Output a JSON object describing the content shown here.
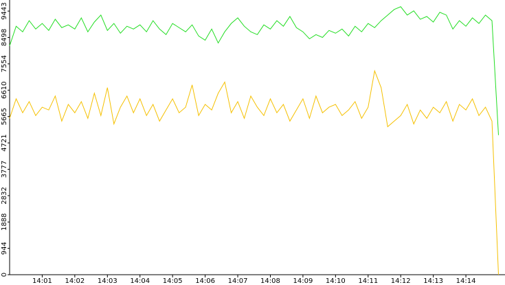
{
  "chart_data": {
    "type": "line",
    "xlim": [
      840,
      855.2
    ],
    "ylim": [
      0,
      9840
    ],
    "xticks": [
      {
        "value": 841,
        "label": "14:01"
      },
      {
        "value": 842,
        "label": "14:02"
      },
      {
        "value": 843,
        "label": "14:03"
      },
      {
        "value": 844,
        "label": "14:04"
      },
      {
        "value": 845,
        "label": "14:05"
      },
      {
        "value": 846,
        "label": "14:06"
      },
      {
        "value": 847,
        "label": "14:07"
      },
      {
        "value": 848,
        "label": "14:08"
      },
      {
        "value": 849,
        "label": "14:09"
      },
      {
        "value": 850,
        "label": "14:10"
      },
      {
        "value": 851,
        "label": "14:11"
      },
      {
        "value": 852,
        "label": "14:12"
      },
      {
        "value": 853,
        "label": "14:13"
      },
      {
        "value": 854,
        "label": "14:14"
      }
    ],
    "yticks": [
      0,
      944,
      1888,
      2832,
      3777,
      4721,
      5665,
      6610,
      7554,
      8498,
      9443
    ],
    "x": [
      840.0,
      840.2,
      840.4,
      840.6,
      840.8,
      841.0,
      841.2,
      841.4,
      841.6,
      841.8,
      842.0,
      842.2,
      842.4,
      842.6,
      842.8,
      843.0,
      843.2,
      843.4,
      843.6,
      843.8,
      844.0,
      844.2,
      844.4,
      844.6,
      844.8,
      845.0,
      845.2,
      845.4,
      845.6,
      845.8,
      846.0,
      846.2,
      846.4,
      846.6,
      846.8,
      847.0,
      847.2,
      847.4,
      847.6,
      847.8,
      848.0,
      848.2,
      848.4,
      848.6,
      848.8,
      849.0,
      849.2,
      849.4,
      849.6,
      849.8,
      850.0,
      850.2,
      850.4,
      850.6,
      850.8,
      851.0,
      851.2,
      851.4,
      851.6,
      851.8,
      852.0,
      852.2,
      852.4,
      852.6,
      852.8,
      853.0,
      853.2,
      853.4,
      853.6,
      853.8,
      854.0,
      854.2,
      854.4,
      854.6,
      854.8,
      855.0
    ],
    "series": [
      {
        "color": "#22dd22",
        "values": [
          8200,
          8900,
          8700,
          9100,
          8800,
          9000,
          8750,
          9150,
          8850,
          8950,
          8800,
          9200,
          8700,
          9050,
          9300,
          8750,
          9000,
          8650,
          8900,
          8800,
          8950,
          8700,
          9100,
          8800,
          8600,
          9000,
          8850,
          8700,
          8950,
          8550,
          8400,
          8800,
          8300,
          8700,
          9000,
          9200,
          8900,
          8700,
          8600,
          8950,
          8800,
          9100,
          8900,
          9250,
          8850,
          8700,
          8450,
          8600,
          8500,
          8750,
          8650,
          8800,
          8550,
          8900,
          8700,
          9000,
          8850,
          9100,
          9300,
          9500,
          9600,
          9300,
          9450,
          9150,
          9250,
          9050,
          9400,
          9300,
          8800,
          9100,
          8900,
          9200,
          9000,
          9300,
          9100,
          5000
        ]
      },
      {
        "color": "#f5c000",
        "values": [
          5600,
          6300,
          5800,
          6200,
          5700,
          6000,
          5900,
          6400,
          5500,
          6100,
          5800,
          6200,
          5600,
          6500,
          5700,
          6700,
          5400,
          6000,
          6400,
          5800,
          6300,
          5700,
          6100,
          5500,
          5900,
          6300,
          5800,
          6000,
          6800,
          5700,
          6100,
          5900,
          6500,
          6900,
          5800,
          6200,
          5600,
          6400,
          6000,
          5700,
          6300,
          5800,
          6100,
          5500,
          5900,
          6300,
          5600,
          6400,
          5800,
          6000,
          6100,
          5700,
          5900,
          6200,
          5600,
          6000,
          7300,
          6700,
          5300,
          5500,
          5700,
          6100,
          5400,
          5900,
          5600,
          6000,
          5800,
          6200,
          5500,
          6100,
          5900,
          6300,
          5700,
          6000,
          5500,
          0
        ]
      }
    ]
  }
}
